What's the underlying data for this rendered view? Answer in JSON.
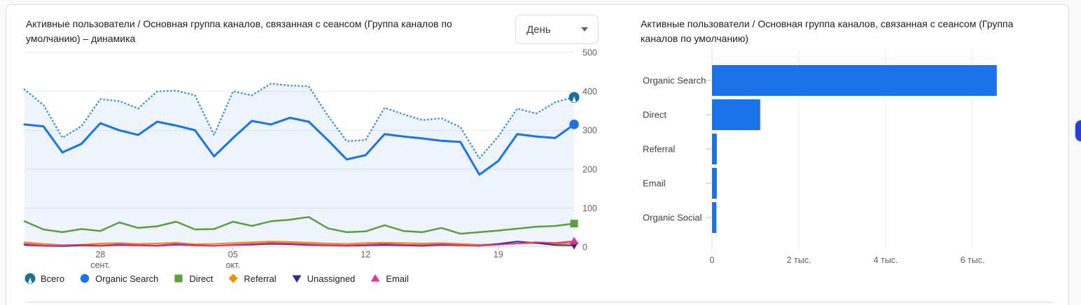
{
  "page": {
    "background": "#f8f9fa",
    "card_border": "#dadce0"
  },
  "left_chart": {
    "title": "Активные пользователи / Основная группа каналов, связанная с сеансом (Группа каналов по умолчанию) – динамика",
    "dropdown": {
      "value": "День"
    }
  },
  "right_chart": {
    "title": "Активные пользователи / Основная группа каналов, связанная с сеансом (Группа каналов по умолчанию)"
  },
  "legend": {
    "items": [
      {
        "label": "Всего",
        "shape": "scallop",
        "color": "#1b6fa0"
      },
      {
        "label": "Organic Search",
        "shape": "circle",
        "color": "#1a73e8"
      },
      {
        "label": "Direct",
        "shape": "square",
        "color": "#5f9e3e"
      },
      {
        "label": "Referral",
        "shape": "diamond",
        "color": "#ef8f00"
      },
      {
        "label": "Unassigned",
        "shape": "triangle-down",
        "color": "#2a3184"
      },
      {
        "label": "Email",
        "shape": "triangle-up",
        "color": "#e0368f"
      }
    ]
  },
  "chart_data": [
    {
      "type": "line",
      "title": "Активные пользователи / Основная группа каналов, связанная с сеансом (Группа каналов по умолчанию) – динамика",
      "granularity": "День",
      "ylim": [
        0,
        500
      ],
      "y_ticks": [
        0,
        100,
        200,
        300,
        400,
        500
      ],
      "x_tick_labels": [
        {
          "label": "28",
          "sub": "сент.",
          "index": 4
        },
        {
          "label": "05",
          "sub": "окт.",
          "index": 11
        },
        {
          "label": "12",
          "sub": "",
          "index": 18
        },
        {
          "label": "19",
          "sub": "",
          "index": 25
        }
      ],
      "grid": true,
      "legend_position": "bottom",
      "series": [
        {
          "name": "Всего",
          "style": "dotted",
          "color": "#4f97d3",
          "marker": "scallop",
          "marker_color": "#1b6fa0",
          "area_fill": "rgba(26,115,232,0.08)",
          "values": [
            405,
            365,
            281,
            310,
            380,
            375,
            356,
            400,
            402,
            390,
            288,
            400,
            390,
            420,
            415,
            413,
            338,
            272,
            275,
            358,
            341,
            326,
            331,
            308,
            228,
            284,
            356,
            343,
            372,
            385
          ]
        },
        {
          "name": "Organic Search",
          "style": "solid",
          "color": "#1a73e8",
          "marker": "circle",
          "marker_color": "#1a73e8",
          "values": [
            315,
            310,
            243,
            265,
            318,
            300,
            288,
            322,
            312,
            300,
            233,
            280,
            324,
            315,
            332,
            322,
            275,
            225,
            236,
            290,
            284,
            279,
            273,
            270,
            186,
            221,
            290,
            284,
            280,
            315
          ]
        },
        {
          "name": "Direct",
          "style": "solid",
          "color": "#5f9e3e",
          "marker": "square",
          "marker_color": "#5f9e3e",
          "values": [
            66,
            45,
            38,
            46,
            41,
            63,
            49,
            53,
            65,
            45,
            46,
            65,
            54,
            66,
            70,
            77,
            48,
            38,
            40,
            56,
            41,
            38,
            49,
            34,
            38,
            42,
            47,
            52,
            54,
            60
          ]
        },
        {
          "name": "Referral",
          "style": "solid",
          "color": "#ef8f00",
          "marker": "diamond",
          "marker_color": "#ef8f00",
          "values": [
            12,
            8,
            5,
            6,
            9,
            10,
            8,
            9,
            11,
            7,
            8,
            10,
            12,
            14,
            13,
            11,
            9,
            8,
            10,
            11,
            10,
            9,
            10,
            8,
            6,
            7,
            9,
            10,
            8,
            10
          ]
        },
        {
          "name": "Unassigned",
          "style": "solid",
          "color": "#2a3184",
          "marker": "triangle-down",
          "marker_color": "#2a3184",
          "values": [
            5,
            3,
            2,
            4,
            3,
            5,
            4,
            3,
            6,
            4,
            3,
            5,
            6,
            8,
            7,
            5,
            4,
            3,
            4,
            5,
            4,
            3,
            5,
            4,
            3,
            8,
            14,
            10,
            5,
            4
          ]
        },
        {
          "name": "Email",
          "style": "solid",
          "color": "#e0368f",
          "marker": "triangle-up",
          "marker_color": "#e0368f",
          "values": [
            8,
            4,
            3,
            6,
            4,
            7,
            5,
            4,
            8,
            5,
            3,
            6,
            8,
            10,
            9,
            7,
            5,
            4,
            6,
            8,
            6,
            5,
            7,
            5,
            3,
            6,
            9,
            12,
            10,
            15
          ]
        }
      ]
    },
    {
      "type": "bar",
      "title": "Активные пользователи / Основная группа каналов, связанная с сеансом (Группа каналов по умолчанию)",
      "orientation": "horizontal",
      "categories": [
        "Organic Search",
        "Direct",
        "Referral",
        "Email",
        "Organic Social"
      ],
      "values": [
        6560,
        1110,
        110,
        110,
        100
      ],
      "bar_color": "#1a73e8",
      "xlim": [
        0,
        8000
      ],
      "x_tick_values": [
        0,
        2000,
        4000,
        6000
      ],
      "x_tick_labels": [
        "0",
        "2 тыс.",
        "4 тыс.",
        "6 тыс."
      ],
      "grid": true
    }
  ],
  "side_panel_handle": {
    "color": "#2b3ed2"
  }
}
